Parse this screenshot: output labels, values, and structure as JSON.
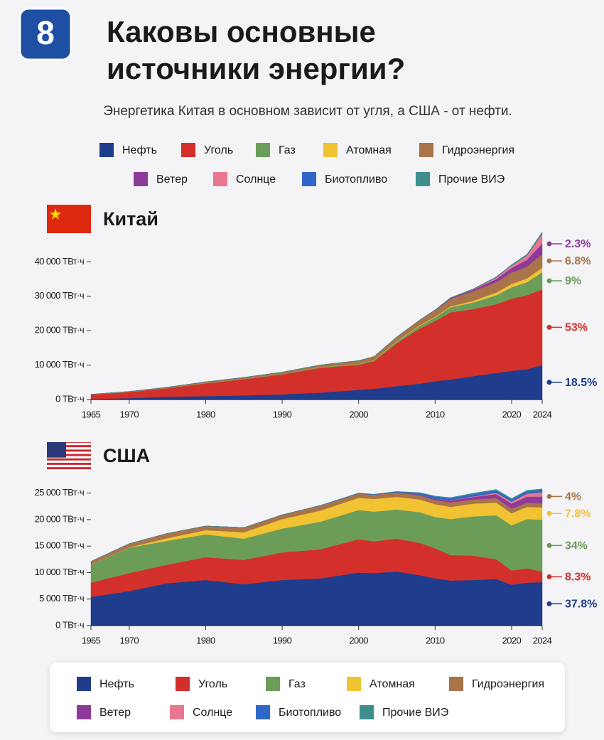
{
  "badge": "8",
  "title_lines": [
    "Каковы основные",
    "источники энергии?"
  ],
  "subtitle": "Энергетика Китая в основном зависит от угля, а США - от нефти.",
  "chart_data": [
    {
      "type": "area",
      "stacked": true,
      "title": "Китай",
      "x": [
        1965,
        1970,
        1975,
        1980,
        1985,
        1990,
        1995,
        2000,
        2002,
        2005,
        2008,
        2010,
        2012,
        2015,
        2018,
        2020,
        2022,
        2024
      ],
      "xlim": [
        1965,
        2024
      ],
      "xticks": [
        1965,
        1970,
        1980,
        1990,
        2000,
        2010,
        2020,
        2024
      ],
      "ylim": [
        0,
        50000
      ],
      "yticks": [
        {
          "value": 0,
          "label": "0 ТВт·ч"
        },
        {
          "value": 10000,
          "label": "10 000 ТВт·ч"
        },
        {
          "value": 20000,
          "label": "20 000 ТВт·ч"
        },
        {
          "value": 30000,
          "label": "30 000 ТВт·ч"
        },
        {
          "value": 40000,
          "label": "40 000 ТВт·ч"
        }
      ],
      "series": [
        {
          "name": "Нефть",
          "color": "#1f3d8c",
          "share": 18.5,
          "share_label": "18.5%",
          "values": [
            150,
            400,
            800,
            1000,
            1200,
            1500,
            2000,
            2800,
            3100,
            3900,
            4600,
            5300,
            5800,
            6800,
            7700,
            8300,
            8800,
            10000
          ]
        },
        {
          "name": "Уголь",
          "color": "#d3302b",
          "share": 53,
          "share_label": "53%",
          "values": [
            1300,
            1800,
            2500,
            3700,
            4700,
            5800,
            7200,
            7300,
            8000,
            12500,
            16000,
            17500,
            19500,
            19500,
            20000,
            21000,
            21500,
            22000
          ]
        },
        {
          "name": "Газ",
          "color": "#6c9d58",
          "share": 9,
          "share_label": "9%",
          "values": [
            10,
            30,
            80,
            120,
            120,
            150,
            200,
            250,
            300,
            450,
            800,
            1100,
            1500,
            1900,
            2600,
            3300,
            3800,
            5000
          ]
        },
        {
          "name": "Атомная",
          "color": "#f1c232",
          "values": [
            0,
            0,
            0,
            0,
            0,
            0,
            40,
            60,
            70,
            150,
            200,
            200,
            250,
            500,
            800,
            1000,
            1100,
            1300
          ]
        },
        {
          "name": "Гидроэнергия",
          "color": "#a97449",
          "share": 6.8,
          "share_label": "6.8%",
          "values": [
            50,
            100,
            200,
            300,
            400,
            500,
            600,
            900,
            1000,
            1200,
            1500,
            1800,
            2200,
            2800,
            3000,
            3300,
            3400,
            4000
          ]
        },
        {
          "name": "Ветер",
          "color": "#8e3a9b",
          "share": 2.3,
          "share_label": "2.3%",
          "values": [
            0,
            0,
            0,
            0,
            0,
            0,
            0,
            0,
            0,
            5,
            30,
            120,
            250,
            450,
            900,
            1300,
            2000,
            3000
          ]
        },
        {
          "name": "Солнце",
          "color": "#e8768f",
          "values": [
            0,
            0,
            0,
            0,
            0,
            0,
            0,
            0,
            0,
            0,
            0,
            2,
            15,
            100,
            450,
            700,
            1200,
            2800
          ]
        },
        {
          "name": "Биотопливо",
          "color": "#2f67c9",
          "values": [
            0,
            0,
            0,
            0,
            0,
            0,
            0,
            0,
            0,
            10,
            15,
            20,
            25,
            30,
            40,
            50,
            60,
            100
          ]
        },
        {
          "name": "Прочие ВИЭ",
          "color": "#3e8e8e",
          "values": [
            0,
            0,
            0,
            0,
            0,
            0,
            0,
            0,
            0,
            0,
            10,
            30,
            60,
            100,
            200,
            250,
            350,
            500
          ]
        }
      ]
    },
    {
      "type": "area",
      "stacked": true,
      "title": "США",
      "x": [
        1965,
        1970,
        1975,
        1980,
        1985,
        1990,
        1995,
        2000,
        2002,
        2005,
        2008,
        2010,
        2012,
        2015,
        2018,
        2020,
        2022,
        2024
      ],
      "xlim": [
        1965,
        2024
      ],
      "xticks": [
        1965,
        1970,
        1980,
        1990,
        2000,
        2010,
        2020,
        2024
      ],
      "ylim": [
        0,
        27500
      ],
      "yticks": [
        {
          "value": 0,
          "label": "0 ТВт·ч"
        },
        {
          "value": 5000,
          "label": "5 000 ТВт·ч"
        },
        {
          "value": 10000,
          "label": "10 000 ТВт·ч"
        },
        {
          "value": 15000,
          "label": "15 000 ТВт·ч"
        },
        {
          "value": 20000,
          "label": "20 000 ТВт·ч"
        },
        {
          "value": 25000,
          "label": "25 000 ТВт·ч"
        }
      ],
      "series": [
        {
          "name": "Нефть",
          "color": "#1f3d8c",
          "share": 37.8,
          "share_label": "37.8%",
          "values": [
            5400,
            6500,
            8000,
            8600,
            7800,
            8600,
            8900,
            10000,
            9900,
            10200,
            9500,
            8900,
            8500,
            8600,
            8800,
            7700,
            8100,
            8200
          ]
        },
        {
          "name": "Уголь",
          "color": "#d3302b",
          "share": 8.3,
          "share_label": "8.3%",
          "values": [
            2700,
            3400,
            3500,
            4300,
            4600,
            5200,
            5500,
            6300,
            6000,
            6200,
            6100,
            5700,
            4800,
            4600,
            3700,
            2700,
            2700,
            2000
          ]
        },
        {
          "name": "Газ",
          "color": "#6c9d58",
          "share": 34,
          "share_label": "34%",
          "values": [
            3400,
            4800,
            4500,
            4300,
            4000,
            4500,
            5200,
            5500,
            5600,
            5500,
            5800,
            5900,
            6800,
            7400,
            8300,
            8500,
            9300,
            9800
          ]
        },
        {
          "name": "Атомная",
          "color": "#f1c232",
          "share": 7.8,
          "share_label": "7.8%",
          "values": [
            10,
            60,
            500,
            800,
            1200,
            1800,
            2100,
            2300,
            2400,
            2400,
            2400,
            2400,
            2300,
            2400,
            2400,
            2300,
            2300,
            2300
          ]
        },
        {
          "name": "Гидроэнергия",
          "color": "#a97449",
          "share": 4,
          "share_label": "4%",
          "values": [
            600,
            700,
            900,
            800,
            900,
            800,
            950,
            800,
            750,
            800,
            750,
            780,
            850,
            780,
            860,
            850,
            780,
            750
          ]
        },
        {
          "name": "Ветер",
          "color": "#8e3a9b",
          "values": [
            0,
            0,
            0,
            0,
            0,
            0,
            0,
            20,
            30,
            50,
            150,
            250,
            350,
            500,
            750,
            950,
            1150,
            1300
          ]
        },
        {
          "name": "Солнце",
          "color": "#e8768f",
          "values": [
            0,
            0,
            0,
            0,
            0,
            0,
            0,
            0,
            0,
            0,
            5,
            10,
            30,
            100,
            250,
            400,
            550,
            800
          ]
        },
        {
          "name": "Биотопливо",
          "color": "#2f67c9",
          "values": [
            0,
            0,
            0,
            0,
            0,
            0,
            0,
            50,
            60,
            100,
            300,
            400,
            400,
            450,
            450,
            400,
            450,
            450
          ]
        },
        {
          "name": "Прочие ВИЭ",
          "color": "#3e8e8e",
          "values": [
            0,
            0,
            0,
            0,
            0,
            0,
            50,
            50,
            50,
            60,
            80,
            100,
            120,
            150,
            160,
            180,
            200,
            200
          ]
        }
      ]
    }
  ]
}
